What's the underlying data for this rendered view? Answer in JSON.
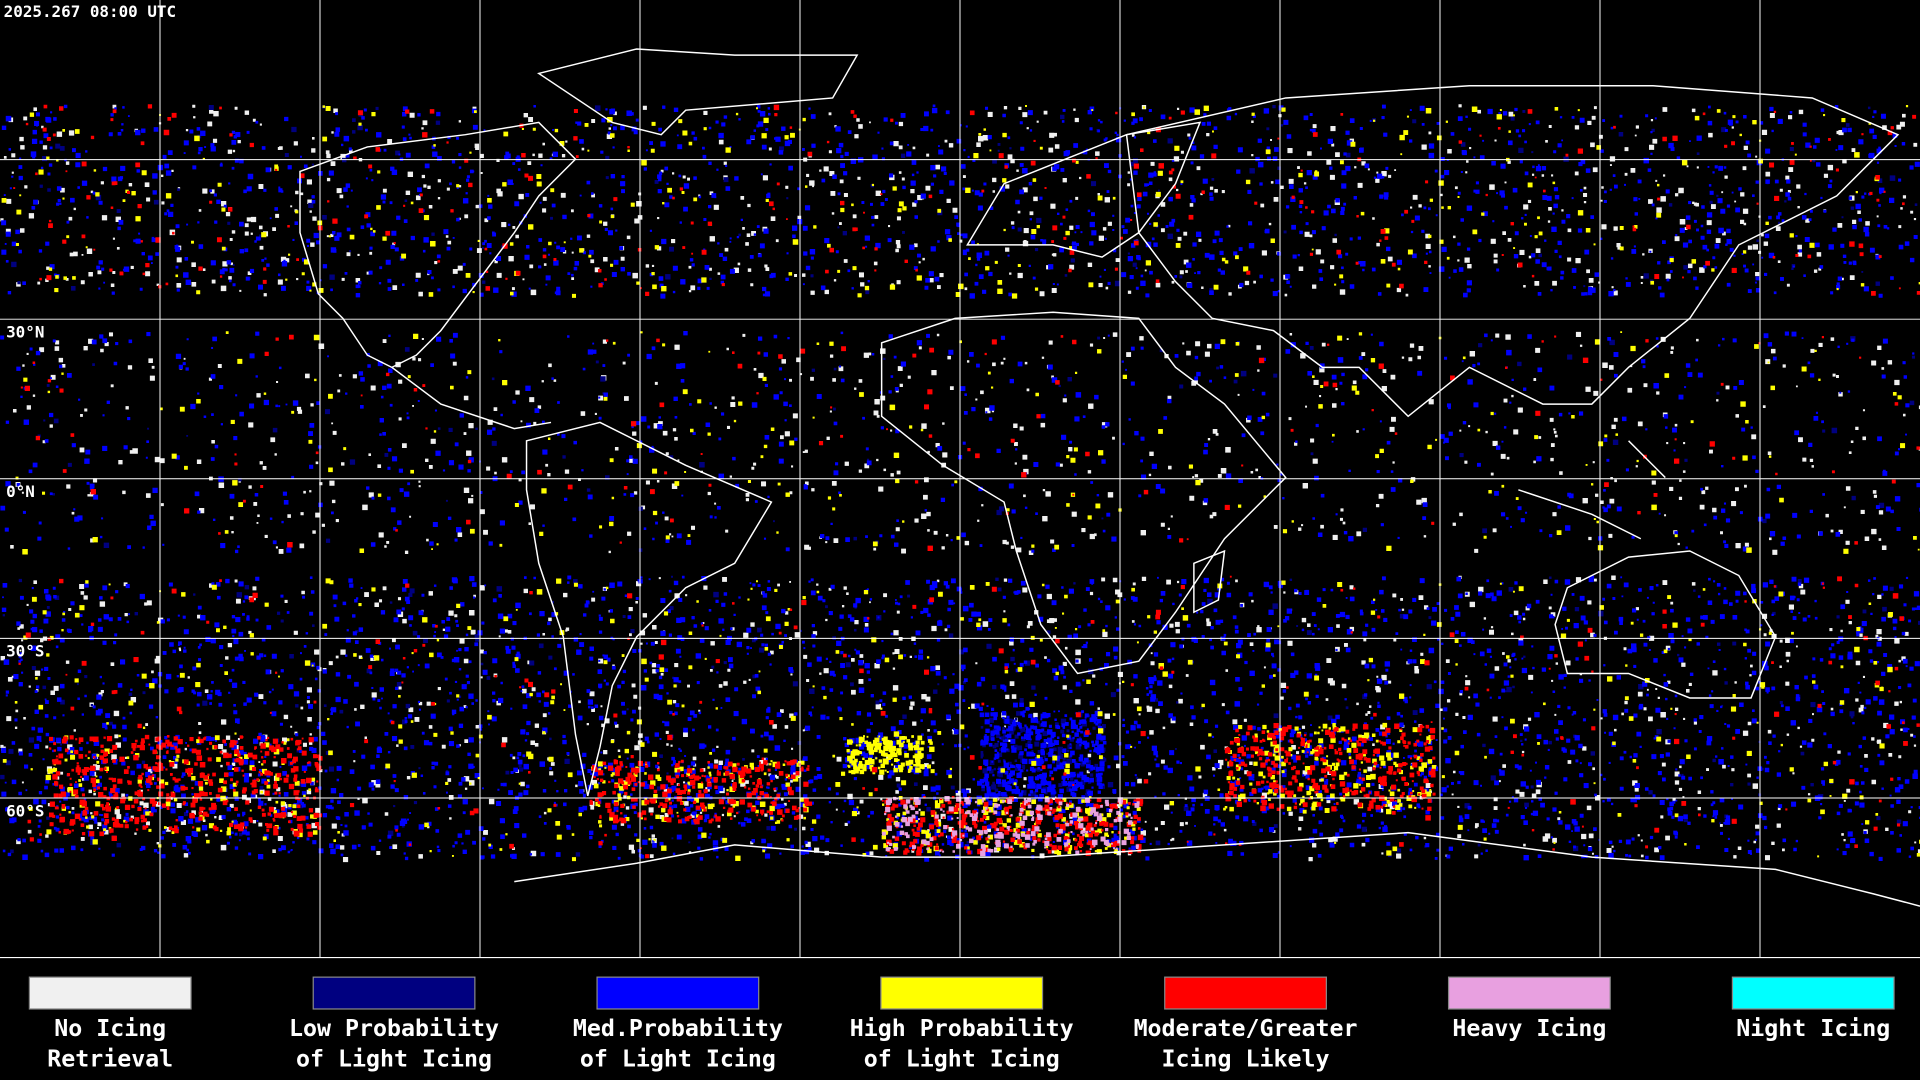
{
  "timestamp": "2025.267 08:00 UTC",
  "latitude_labels": [
    "30°N",
    "0°N",
    "30°S",
    "60°S"
  ],
  "legend": [
    {
      "lines": [
        "No Icing",
        "Retrieval"
      ],
      "color": "#f0f0f0"
    },
    {
      "lines": [
        "Low Probability",
        "of Light Icing"
      ],
      "color": "#000080"
    },
    {
      "lines": [
        "Med.Probability",
        "of Light Icing"
      ],
      "color": "#0000ff"
    },
    {
      "lines": [
        "High Probability",
        "of Light Icing"
      ],
      "color": "#ffff00"
    },
    {
      "lines": [
        "Moderate/Greater",
        "Icing Likely"
      ],
      "color": "#ff0000"
    },
    {
      "lines": [
        "Heavy Icing"
      ],
      "color": "#e8a0e0"
    },
    {
      "lines": [
        "Night Icing"
      ],
      "color": "#00ffff"
    }
  ]
}
